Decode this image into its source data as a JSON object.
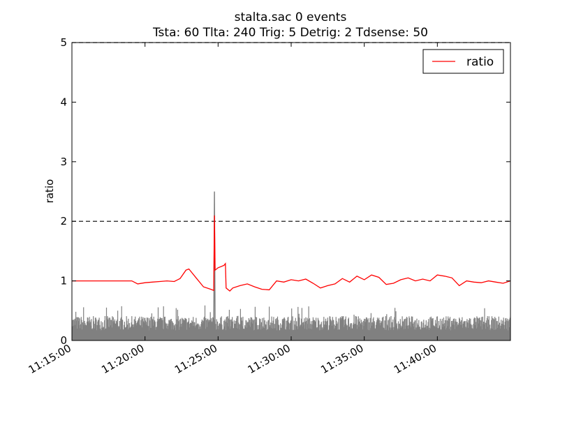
{
  "chart_data": {
    "type": "line",
    "title_line1": "stalta.sac   0 events",
    "title_line2": "Tsta: 60  Tlta: 240  Trig: 5  Detrig: 2  Tdsense: 50",
    "xlabel": "",
    "ylabel": "ratio",
    "x_unit": "minutes since 11:15:00",
    "xlim": [
      0,
      30
    ],
    "ylim": [
      0,
      5
    ],
    "x_ticks": [
      {
        "value": 0,
        "label": "11:15:00"
      },
      {
        "value": 5,
        "label": "11:20:00"
      },
      {
        "value": 10,
        "label": "11:25:00"
      },
      {
        "value": 15,
        "label": "11:30:00"
      },
      {
        "value": 20,
        "label": "11:35:00"
      },
      {
        "value": 25,
        "label": "11:40:00"
      }
    ],
    "y_ticks": [
      {
        "value": 0,
        "label": "0"
      },
      {
        "value": 1,
        "label": "1"
      },
      {
        "value": 2,
        "label": "2"
      },
      {
        "value": 3,
        "label": "3"
      },
      {
        "value": 4,
        "label": "4"
      },
      {
        "value": 5,
        "label": "5"
      }
    ],
    "thresholds": [
      {
        "value": 2,
        "style": "dashed",
        "color": "#000000"
      },
      {
        "value": 5,
        "style": "dashed",
        "color": "#000000"
      }
    ],
    "legend": {
      "position": "top-right",
      "entries": [
        {
          "name": "ratio",
          "color": "#ff0000"
        }
      ]
    },
    "series": [
      {
        "name": "ratio",
        "color": "#ff0000",
        "x": [
          0,
          1,
          2,
          3,
          4,
          4.1,
          4.5,
          5,
          5.5,
          6,
          6.5,
          7,
          7.4,
          7.8,
          8,
          8.5,
          9,
          9.5,
          9.7,
          9.75,
          9.8,
          10,
          10.4,
          10.5,
          10.55,
          10.8,
          11,
          11.5,
          12,
          12.5,
          13,
          13.5,
          14,
          14.5,
          15,
          15.5,
          16,
          16.5,
          17,
          17.5,
          18,
          18.5,
          19,
          19.5,
          20,
          20.5,
          21,
          21.5,
          22,
          22.5,
          23,
          23.5,
          24,
          24.5,
          25,
          25.5,
          26,
          26.5,
          27,
          27.5,
          28,
          28.5,
          29,
          29.5,
          30
        ],
        "y": [
          1.0,
          1.0,
          1.0,
          1.0,
          1.0,
          1.0,
          0.95,
          0.97,
          0.98,
          0.99,
          1.0,
          0.99,
          1.04,
          1.18,
          1.2,
          1.05,
          0.9,
          0.86,
          0.84,
          2.1,
          1.18,
          1.22,
          1.26,
          1.29,
          0.88,
          0.83,
          0.88,
          0.92,
          0.95,
          0.9,
          0.86,
          0.85,
          1.0,
          0.98,
          1.02,
          1.0,
          1.03,
          0.96,
          0.88,
          0.92,
          0.95,
          1.04,
          0.98,
          1.08,
          1.02,
          1.1,
          1.06,
          0.94,
          0.96,
          1.02,
          1.05,
          1.0,
          1.03,
          1.0,
          1.1,
          1.08,
          1.05,
          0.92,
          1.0,
          0.98,
          0.97,
          1.0,
          0.98,
          0.96,
          1.0
        ]
      },
      {
        "name": "waveform",
        "color": "#808080",
        "envelope_baseline": 0.05,
        "typical_amplitude": 0.3,
        "spike": {
          "x": 9.75,
          "y": 2.5
        }
      }
    ]
  }
}
